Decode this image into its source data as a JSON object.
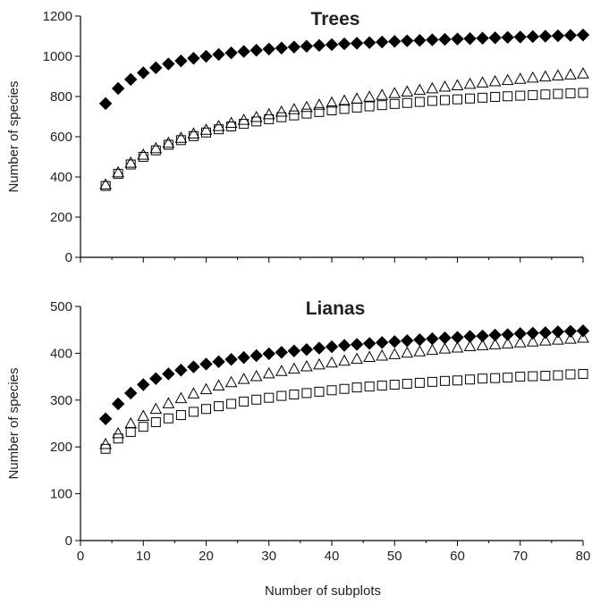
{
  "chart_data": [
    {
      "type": "scatter",
      "title": "Trees",
      "xlabel": "",
      "ylabel": "Number of species",
      "xlim": [
        0,
        80
      ],
      "ylim": [
        0,
        1200
      ],
      "x_ticks": [
        0,
        10,
        20,
        30,
        40,
        50,
        60,
        70,
        80
      ],
      "x_tick_labels_shown": false,
      "y_ticks": [
        0,
        200,
        400,
        600,
        800,
        1000,
        1200
      ],
      "legend": "none",
      "grid": false,
      "x": [
        4,
        6,
        8,
        10,
        12,
        14,
        16,
        18,
        20,
        22,
        24,
        26,
        28,
        30,
        32,
        34,
        36,
        38,
        40,
        42,
        44,
        46,
        48,
        50,
        52,
        54,
        56,
        58,
        60,
        62,
        64,
        66,
        68,
        70,
        72,
        74,
        76,
        78,
        80
      ],
      "series": [
        {
          "marker": "filled-diamond",
          "color": "#000000",
          "values": [
            765,
            840,
            885,
            918,
            943,
            962,
            977,
            990,
            1000,
            1009,
            1017,
            1024,
            1030,
            1036,
            1041,
            1046,
            1050,
            1054,
            1058,
            1062,
            1065,
            1068,
            1071,
            1074,
            1077,
            1079,
            1082,
            1084,
            1086,
            1088,
            1090,
            1092,
            1094,
            1096,
            1098,
            1100,
            1102,
            1104,
            1106
          ]
        },
        {
          "marker": "open-triangle",
          "color": "#000000",
          "values": [
            360,
            420,
            468,
            508,
            540,
            567,
            592,
            613,
            632,
            650,
            666,
            681,
            695,
            709,
            722,
            734,
            745,
            756,
            767,
            777,
            787,
            796,
            805,
            814,
            822,
            830,
            838,
            846,
            853,
            860,
            867,
            873,
            879,
            885,
            891,
            897,
            902,
            907,
            912
          ]
        },
        {
          "marker": "open-square",
          "color": "#000000",
          "values": [
            355,
            415,
            462,
            500,
            532,
            560,
            583,
            603,
            621,
            637,
            651,
            664,
            676,
            687,
            697,
            706,
            715,
            723,
            731,
            738,
            745,
            751,
            757,
            763,
            768,
            773,
            778,
            782,
            786,
            790,
            794,
            798,
            801,
            804,
            807,
            810,
            813,
            816,
            818
          ]
        }
      ]
    },
    {
      "type": "scatter",
      "title": "Lianas",
      "xlabel": "Number of subplots",
      "ylabel": "Number of species",
      "xlim": [
        0,
        80
      ],
      "ylim": [
        0,
        500
      ],
      "x_ticks": [
        0,
        10,
        20,
        30,
        40,
        50,
        60,
        70,
        80
      ],
      "x_tick_labels_shown": true,
      "y_ticks": [
        0,
        100,
        200,
        300,
        400,
        500
      ],
      "legend": "none",
      "grid": false,
      "x": [
        4,
        6,
        8,
        10,
        12,
        14,
        16,
        18,
        20,
        22,
        24,
        26,
        28,
        30,
        32,
        34,
        36,
        38,
        40,
        42,
        44,
        46,
        48,
        50,
        52,
        54,
        56,
        58,
        60,
        62,
        64,
        66,
        68,
        70,
        72,
        74,
        76,
        78,
        80
      ],
      "series": [
        {
          "marker": "filled-diamond",
          "color": "#000000",
          "values": [
            260,
            292,
            315,
            333,
            346,
            356,
            364,
            371,
            377,
            382,
            387,
            391,
            395,
            399,
            402,
            405,
            408,
            411,
            414,
            417,
            419,
            421,
            423,
            425,
            427,
            429,
            431,
            433,
            434,
            436,
            437,
            439,
            440,
            442,
            443,
            444,
            446,
            447,
            448
          ]
        },
        {
          "marker": "open-triangle",
          "color": "#000000",
          "values": [
            205,
            228,
            249,
            265,
            280,
            292,
            303,
            313,
            322,
            330,
            337,
            344,
            350,
            356,
            361,
            366,
            371,
            375,
            379,
            383,
            387,
            391,
            394,
            397,
            400,
            403,
            406,
            409,
            411,
            414,
            416,
            418,
            420,
            422,
            424,
            426,
            428,
            430,
            432
          ]
        },
        {
          "marker": "open-square",
          "color": "#000000",
          "values": [
            196,
            218,
            232,
            243,
            253,
            261,
            268,
            275,
            281,
            287,
            292,
            297,
            301,
            305,
            309,
            312,
            315,
            318,
            321,
            324,
            327,
            329,
            331,
            333,
            335,
            337,
            339,
            341,
            342,
            344,
            346,
            347,
            348,
            350,
            351,
            352,
            353,
            355,
            356
          ]
        }
      ]
    }
  ]
}
